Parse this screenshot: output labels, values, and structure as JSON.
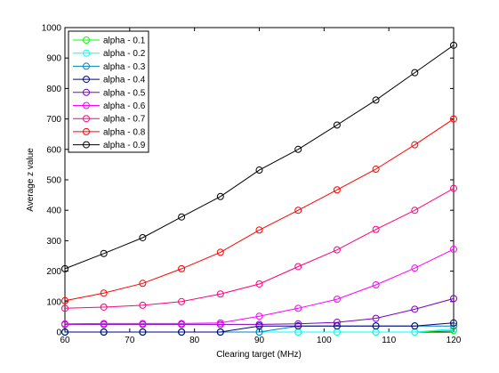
{
  "chart_data": {
    "type": "line",
    "title": "",
    "xlabel": "Clearing target (MHz)",
    "ylabel": "Average z value",
    "xlim": [
      60,
      120
    ],
    "ylim": [
      0,
      1000
    ],
    "xticks": [
      60,
      70,
      80,
      90,
      100,
      110,
      120
    ],
    "yticks": [
      0,
      100,
      200,
      300,
      400,
      500,
      600,
      700,
      800,
      900,
      1000
    ],
    "legend_position": "top-left",
    "grid": false,
    "x": [
      60,
      66,
      72,
      78,
      84,
      90,
      96,
      102,
      108,
      114,
      120
    ],
    "series": [
      {
        "name": "alpha - 0.1",
        "color": "#00ff00",
        "values": [
          0,
          0,
          0,
          0,
          0,
          0,
          0,
          0,
          0,
          0,
          5
        ]
      },
      {
        "name": "alpha - 0.2",
        "color": "#00ffff",
        "values": [
          0,
          0,
          0,
          0,
          0,
          0,
          0,
          0,
          0,
          0,
          10
        ]
      },
      {
        "name": "alpha - 0.3",
        "color": "#0080c0",
        "values": [
          0,
          0,
          0,
          0,
          0,
          0,
          20,
          20,
          20,
          20,
          20
        ]
      },
      {
        "name": "alpha - 0.4",
        "color": "#000080",
        "values": [
          0,
          0,
          0,
          0,
          0,
          20,
          20,
          20,
          20,
          20,
          30
        ]
      },
      {
        "name": "alpha - 0.5",
        "color": "#8000c0",
        "values": [
          25,
          25,
          25,
          25,
          25,
          25,
          27,
          32,
          45,
          75,
          110
        ]
      },
      {
        "name": "alpha - 0.6",
        "color": "#ff00ff",
        "values": [
          27,
          28,
          28,
          28,
          30,
          52,
          78,
          108,
          155,
          210,
          272
        ]
      },
      {
        "name": "alpha - 0.7",
        "color": "#ff0080",
        "values": [
          78,
          82,
          88,
          100,
          125,
          158,
          215,
          270,
          337,
          400,
          472
        ]
      },
      {
        "name": "alpha - 0.8",
        "color": "#ff0000",
        "values": [
          103,
          128,
          160,
          208,
          262,
          335,
          400,
          467,
          535,
          615,
          700
        ]
      },
      {
        "name": "alpha - 0.9",
        "color": "#000000",
        "values": [
          208,
          258,
          310,
          378,
          445,
          532,
          600,
          680,
          762,
          852,
          942
        ]
      }
    ]
  }
}
